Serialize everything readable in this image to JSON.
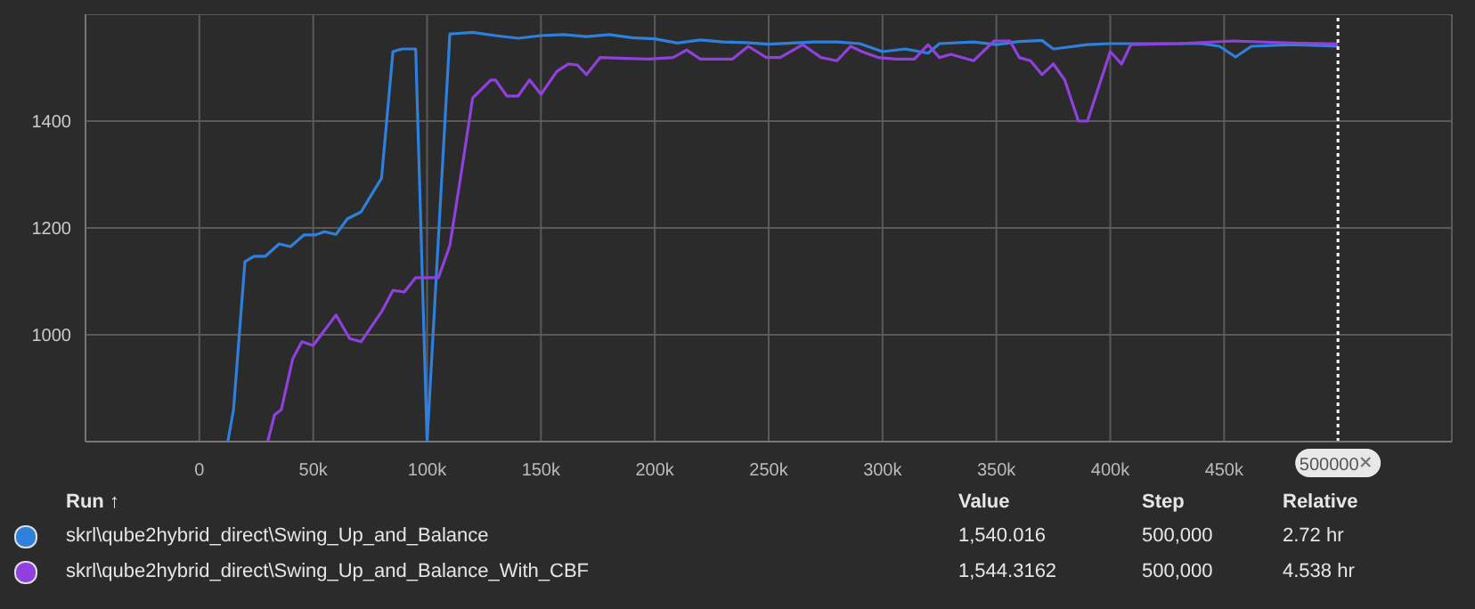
{
  "chart_data": {
    "type": "line",
    "xlim": [
      -50000,
      550000
    ],
    "xticks": [
      {
        "value": -50000,
        "label": null
      },
      0,
      {
        "value": 50000,
        "label": "50k"
      },
      {
        "value": 100000,
        "label": "100k"
      },
      {
        "value": 150000,
        "label": "150k"
      },
      {
        "value": 200000,
        "label": "200k"
      },
      {
        "value": 250000,
        "label": "250k"
      },
      {
        "value": 300000,
        "label": "300k"
      },
      {
        "value": 350000,
        "label": "350k"
      },
      {
        "value": 400000,
        "label": "400k"
      },
      {
        "value": 450000,
        "label": "450k"
      },
      {
        "value": 550000,
        "label": null
      }
    ],
    "ylim": [
      800,
      1600
    ],
    "yticks": [
      {
        "value": 800,
        "label": null
      },
      1000,
      1200,
      1400,
      {
        "value": 1600,
        "label": null
      }
    ],
    "grid": true,
    "legend": "bottom",
    "marker": "none",
    "line_style": "solid",
    "legend_title": "Run ↑",
    "ref_lines": [
      {
        "axis": "x",
        "value": 500000,
        "label": "500000",
        "color": "#ffffff",
        "line_style": "dotted"
      }
    ],
    "annotations": [
      "Value",
      "Step",
      "Relative",
      "1,540.016",
      "500,000",
      "2.72 hr",
      "1,544.3162",
      "500,000",
      "4.538 hr"
    ],
    "series": [
      {
        "name": "skrl\\qube2hybrid_direct\\Swing_Up_and_Balance",
        "color": "#2f80dc",
        "x": [
          12500,
          15000,
          20000,
          24000,
          29000,
          35000,
          40000,
          46000,
          51000,
          55000,
          60000,
          65000,
          71000,
          80000,
          85000,
          89000,
          95000,
          100000,
          105000,
          110000,
          120000,
          130000,
          140000,
          150000,
          160000,
          170000,
          180000,
          190000,
          200000,
          210000,
          220000,
          230000,
          240000,
          250000,
          260000,
          270000,
          280000,
          290000,
          300000,
          310000,
          320000,
          325000,
          340000,
          350000,
          360000,
          370000,
          375000,
          390000,
          400000,
          420000,
          440000,
          448000,
          455000,
          462000,
          480000,
          500000
        ],
        "values": [
          800,
          860,
          1137,
          1147,
          1147,
          1170,
          1165,
          1187,
          1187,
          1193,
          1188,
          1217,
          1230,
          1293,
          1530,
          1535,
          1535,
          800,
          1183,
          1563,
          1566,
          1560,
          1555,
          1560,
          1562,
          1558,
          1562,
          1556,
          1554,
          1546,
          1552,
          1548,
          1547,
          1544,
          1546,
          1548,
          1548,
          1545,
          1530,
          1535,
          1527,
          1545,
          1548,
          1543,
          1549,
          1551,
          1535,
          1543,
          1545,
          1545,
          1545,
          1540,
          1520,
          1540,
          1543,
          1540.016
        ]
      },
      {
        "name": "skrl\\qube2hybrid_direct\\Swing_Up_and_Balance_With_CBF",
        "color": "#9040dc",
        "x": [
          30000,
          33000,
          36000,
          41000,
          45000,
          50000,
          60000,
          66000,
          71000,
          80000,
          85000,
          90000,
          95000,
          105000,
          110000,
          115000,
          120000,
          128000,
          130000,
          135000,
          140000,
          145000,
          150000,
          157000,
          162000,
          166000,
          170000,
          176000,
          197000,
          208000,
          214000,
          220000,
          234000,
          241000,
          249000,
          255000,
          265000,
          273000,
          280000,
          286000,
          291000,
          298000,
          306000,
          314000,
          320000,
          325000,
          330000,
          340000,
          349000,
          356000,
          360000,
          365000,
          370000,
          375000,
          380000,
          386000,
          390000,
          400000,
          405000,
          409000,
          430000,
          454000,
          480000,
          500000
        ],
        "values": [
          800,
          850,
          860,
          955,
          987,
          980,
          1037,
          993,
          987,
          1043,
          1083,
          1080,
          1107,
          1107,
          1167,
          1303,
          1443,
          1477,
          1477,
          1447,
          1447,
          1477,
          1450,
          1493,
          1507,
          1505,
          1487,
          1519,
          1516,
          1519,
          1533,
          1516,
          1516,
          1540,
          1519,
          1519,
          1543,
          1519,
          1513,
          1540,
          1530,
          1519,
          1516,
          1516,
          1543,
          1519,
          1525,
          1513,
          1550,
          1550,
          1519,
          1513,
          1487,
          1507,
          1477,
          1400,
          1400,
          1530,
          1507,
          1543,
          1545,
          1550,
          1546,
          1544.3162
        ]
      }
    ]
  }
}
